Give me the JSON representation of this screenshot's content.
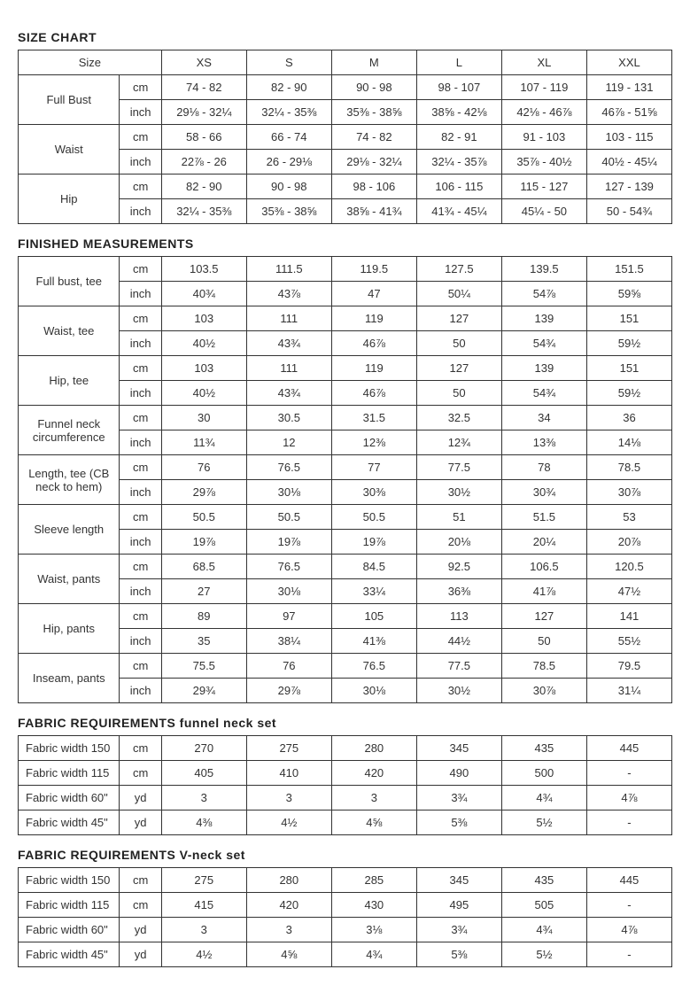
{
  "colors": {
    "text": "#333333",
    "border": "#333333",
    "background": "#ffffff"
  },
  "fontsize": {
    "title": 14,
    "cell": 13
  },
  "sizes": [
    "XS",
    "S",
    "M",
    "L",
    "XL",
    "XXL"
  ],
  "sections": {
    "sizeChart": {
      "title": "SIZE CHART",
      "sizeHeader": "Size",
      "rows": [
        {
          "label": "Full Bust",
          "cm": [
            "74 - 82",
            "82 - 90",
            "90 - 98",
            "98 - 107",
            "107 - 119",
            "119 - 131"
          ],
          "inch": [
            "29⅛ - 32¼",
            "32¼ - 35⅜",
            "35⅜ - 38⅝",
            "38⅝ - 42⅛",
            "42⅛ - 46⅞",
            "46⅞ - 51⅝"
          ]
        },
        {
          "label": "Waist",
          "cm": [
            "58 - 66",
            "66 - 74",
            "74 - 82",
            "82 - 91",
            "91 - 103",
            "103 - 115"
          ],
          "inch": [
            "22⅞ - 26",
            "26 - 29⅛",
            "29⅛ - 32¼",
            "32¼ - 35⅞",
            "35⅞ - 40½",
            "40½ - 45¼"
          ]
        },
        {
          "label": "Hip",
          "cm": [
            "82 - 90",
            "90 - 98",
            "98 - 106",
            "106 - 115",
            "115 - 127",
            "127 - 139"
          ],
          "inch": [
            "32¼ - 35⅜",
            "35⅜ - 38⅝",
            "38⅝ - 41¾",
            "41¾ - 45¼",
            "45¼ - 50",
            "50 - 54¾"
          ]
        }
      ]
    },
    "finished": {
      "title": "FINISHED MEASUREMENTS",
      "rows": [
        {
          "label": "Full bust, tee",
          "cm": [
            "103.5",
            "111.5",
            "119.5",
            "127.5",
            "139.5",
            "151.5"
          ],
          "inch": [
            "40¾",
            "43⅞",
            "47",
            "50¼",
            "54⅞",
            "59⅝"
          ]
        },
        {
          "label": "Waist, tee",
          "cm": [
            "103",
            "111",
            "119",
            "127",
            "139",
            "151"
          ],
          "inch": [
            "40½",
            "43¾",
            "46⅞",
            "50",
            "54¾",
            "59½"
          ]
        },
        {
          "label": "Hip, tee",
          "cm": [
            "103",
            "111",
            "119",
            "127",
            "139",
            "151"
          ],
          "inch": [
            "40½",
            "43¾",
            "46⅞",
            "50",
            "54¾",
            "59½"
          ]
        },
        {
          "label": "Funnel neck circumference",
          "cm": [
            "30",
            "30.5",
            "31.5",
            "32.5",
            "34",
            "36"
          ],
          "inch": [
            "11¾",
            "12",
            "12⅜",
            "12¾",
            "13⅜",
            "14⅛"
          ]
        },
        {
          "label": "Length, tee (CB neck to hem)",
          "cm": [
            "76",
            "76.5",
            "77",
            "77.5",
            "78",
            "78.5"
          ],
          "inch": [
            "29⅞",
            "30⅛",
            "30⅜",
            "30½",
            "30¾",
            "30⅞"
          ]
        },
        {
          "label": "Sleeve length",
          "cm": [
            "50.5",
            "50.5",
            "50.5",
            "51",
            "51.5",
            "53"
          ],
          "inch": [
            "19⅞",
            "19⅞",
            "19⅞",
            "20⅛",
            "20¼",
            "20⅞"
          ]
        },
        {
          "label": "Waist, pants",
          "cm": [
            "68.5",
            "76.5",
            "84.5",
            "92.5",
            "106.5",
            "120.5"
          ],
          "inch": [
            "27",
            "30⅛",
            "33¼",
            "36⅜",
            "41⅞",
            "47½"
          ]
        },
        {
          "label": "Hip, pants",
          "cm": [
            "89",
            "97",
            "105",
            "113",
            "127",
            "141"
          ],
          "inch": [
            "35",
            "38¼",
            "41⅜",
            "44½",
            "50",
            "55½"
          ]
        },
        {
          "label": "Inseam, pants",
          "cm": [
            "75.5",
            "76",
            "76.5",
            "77.5",
            "78.5",
            "79.5"
          ],
          "inch": [
            "29¾",
            "29⅞",
            "30⅛",
            "30½",
            "30⅞",
            "31¼"
          ]
        }
      ]
    },
    "fabricFunnel": {
      "title": "FABRIC REQUIREMENTS funnel neck set",
      "rows": [
        {
          "label": "Fabric width 150",
          "unit": "cm",
          "vals": [
            "270",
            "275",
            "280",
            "345",
            "435",
            "445"
          ]
        },
        {
          "label": "Fabric width 115",
          "unit": "cm",
          "vals": [
            "405",
            "410",
            "420",
            "490",
            "500",
            "-"
          ]
        },
        {
          "label": "Fabric width 60\"",
          "unit": "yd",
          "vals": [
            "3",
            "3",
            "3",
            "3¾",
            "4¾",
            "4⅞"
          ]
        },
        {
          "label": "Fabric width 45\"",
          "unit": "yd",
          "vals": [
            "4⅜",
            "4½",
            "4⅝",
            "5⅜",
            "5½",
            "-"
          ]
        }
      ]
    },
    "fabricV": {
      "title": "FABRIC REQUIREMENTS V-neck set",
      "rows": [
        {
          "label": "Fabric width 150",
          "unit": "cm",
          "vals": [
            "275",
            "280",
            "285",
            "345",
            "435",
            "445"
          ]
        },
        {
          "label": "Fabric width 115",
          "unit": "cm",
          "vals": [
            "415",
            "420",
            "430",
            "495",
            "505",
            "-"
          ]
        },
        {
          "label": "Fabric width 60\"",
          "unit": "yd",
          "vals": [
            "3",
            "3",
            "3⅛",
            "3¾",
            "4¾",
            "4⅞"
          ]
        },
        {
          "label": "Fabric width 45\"",
          "unit": "yd",
          "vals": [
            "4½",
            "4⅝",
            "4¾",
            "5⅜",
            "5½",
            "-"
          ]
        }
      ]
    }
  },
  "units": {
    "cm": "cm",
    "inch": "inch",
    "yd": "yd"
  }
}
